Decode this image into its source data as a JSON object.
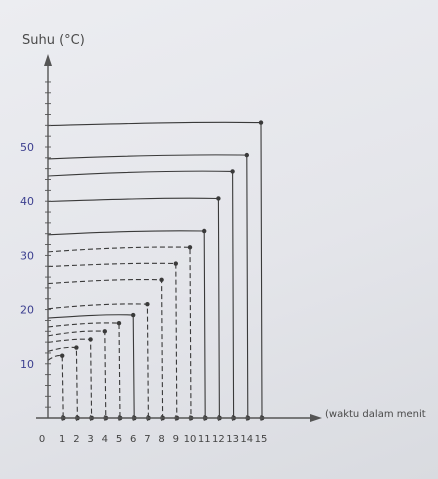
{
  "chart_data": {
    "type": "line",
    "ylabel": "Suhu (°C)",
    "xlabel": "(waktu dalam menit",
    "y_ticks": [
      "10",
      "20",
      "30",
      "40",
      "50"
    ],
    "x_ticks": [
      "0",
      "1",
      "2",
      "3",
      "4",
      "5",
      "6",
      "7",
      "8",
      "9",
      "10",
      "11",
      "12",
      "13",
      "14",
      "15"
    ],
    "xlim": [
      0,
      15
    ],
    "ylim": [
      0,
      68
    ],
    "grid": false,
    "series": [
      {
        "end_time": 15,
        "temperature": 54.5,
        "style": "solid"
      },
      {
        "end_time": 14,
        "temperature": 48.5,
        "style": "solid"
      },
      {
        "end_time": 13,
        "temperature": 45.5,
        "style": "solid"
      },
      {
        "end_time": 12,
        "temperature": 40.5,
        "style": "solid"
      },
      {
        "end_time": 11,
        "temperature": 34.5,
        "style": "solid"
      },
      {
        "end_time": 10,
        "temperature": 31.5,
        "style": "dashed"
      },
      {
        "end_time": 9,
        "temperature": 28.5,
        "style": "dashed"
      },
      {
        "end_time": 8,
        "temperature": 25.5,
        "style": "dashed"
      },
      {
        "end_time": 7,
        "temperature": 21,
        "style": "dashed"
      },
      {
        "end_time": 6,
        "temperature": 19,
        "style": "solid"
      },
      {
        "end_time": 5,
        "temperature": 17.5,
        "style": "dashed"
      },
      {
        "end_time": 4,
        "temperature": 16,
        "style": "dashed"
      },
      {
        "end_time": 3,
        "temperature": 14.5,
        "style": "dashed"
      },
      {
        "end_time": 2,
        "temperature": 13,
        "style": "dashed"
      },
      {
        "end_time": 1,
        "temperature": 11.5,
        "style": "dashed"
      }
    ],
    "colors": {
      "ink": "#3a3a3a",
      "tick_ink": "#3c3f8f",
      "axis_ink": "#555555"
    }
  }
}
